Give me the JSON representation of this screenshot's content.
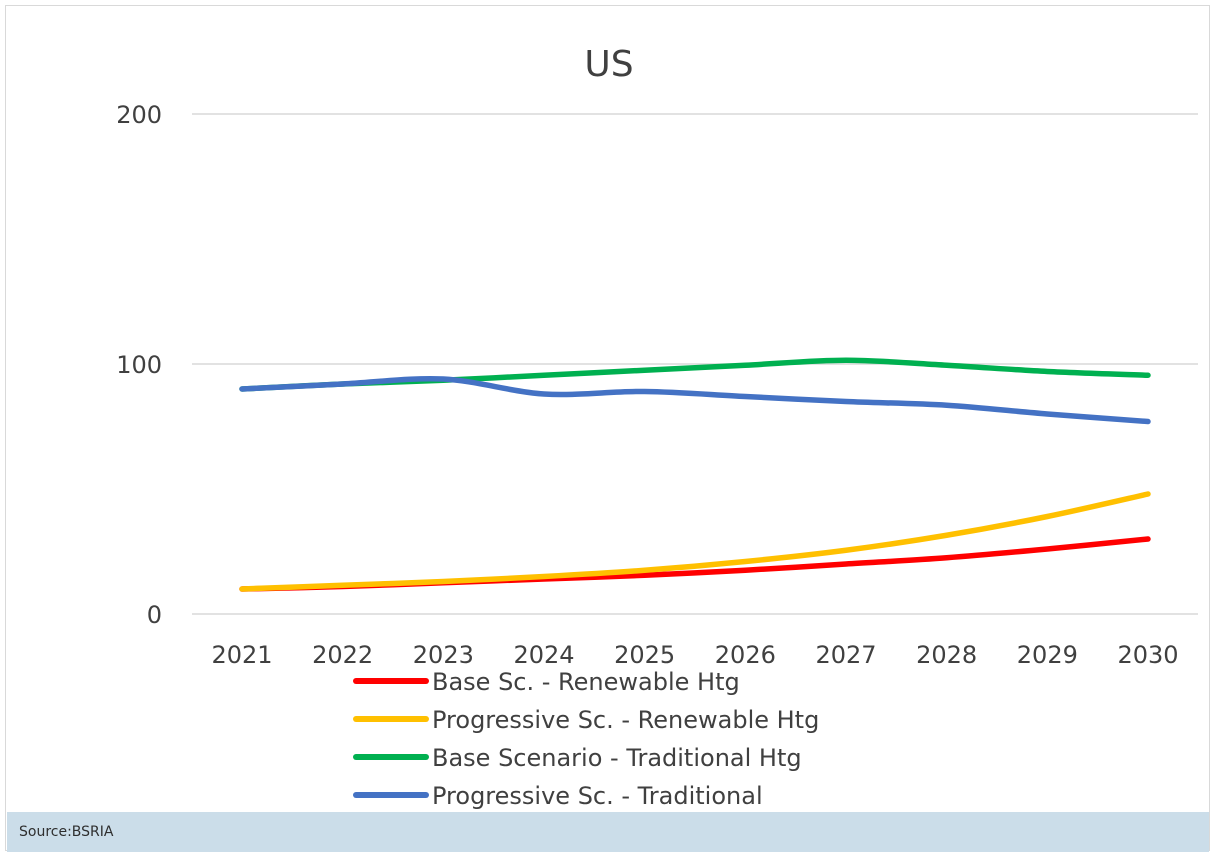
{
  "caption": "Source:BSRIA",
  "chart_data": {
    "type": "line",
    "title": "US",
    "xlabel": "",
    "ylabel": "",
    "categories": [
      "2021",
      "2022",
      "2023",
      "2024",
      "2025",
      "2026",
      "2027",
      "2028",
      "2029",
      "2030"
    ],
    "ylim": [
      0,
      200
    ],
    "yticks": [
      "0",
      "100",
      "200"
    ],
    "grid": true,
    "legend_position": "bottom",
    "series": [
      {
        "name": "Base Sc. - Renewable Htg",
        "color": "#ff0000",
        "values": [
          10,
          11,
          12.5,
          14,
          15.5,
          17.5,
          20,
          22.5,
          26,
          30
        ]
      },
      {
        "name": "Progressive Sc. - Renewable Htg",
        "color": "#ffc000",
        "values": [
          10,
          11.5,
          13,
          15,
          17.5,
          21,
          25.5,
          31.5,
          39,
          48
        ]
      },
      {
        "name": "Base Scenario - Traditional Htg",
        "color": "#00b050",
        "values": [
          90,
          92,
          93.5,
          95.5,
          97.5,
          99.5,
          101.5,
          99.5,
          97,
          95.5
        ]
      },
      {
        "name": "Progressive Sc. - Traditional",
        "color": "#4472c4",
        "values": [
          90,
          92,
          94,
          88,
          89,
          87,
          85,
          83.5,
          80,
          77
        ]
      }
    ]
  }
}
